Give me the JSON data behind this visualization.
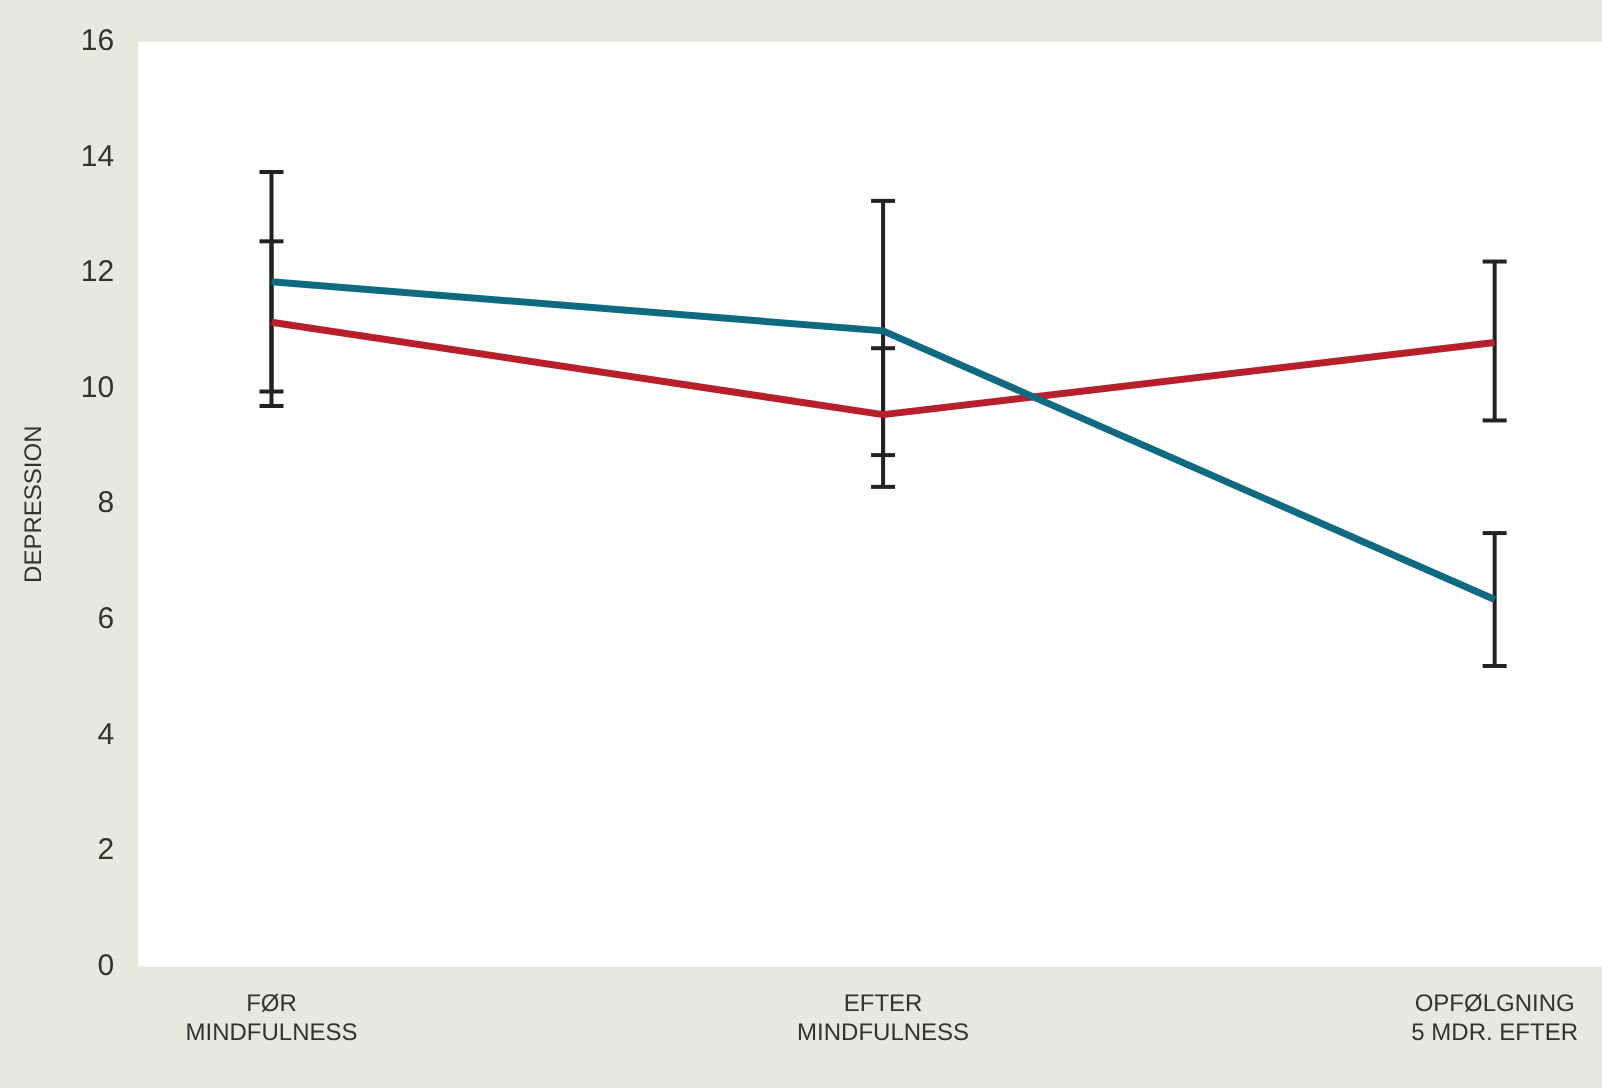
{
  "chart_data": {
    "type": "line",
    "ylabel": "DEPRESSION",
    "categories": [
      "FØR\nMINDFULNESS",
      "EFTER\nMINDFULNESS",
      "OPFØLGNING\n5 MDR. EFTER"
    ],
    "series": [
      {
        "color": "#0e6a80",
        "values": [
          11.85,
          11.0,
          6.35
        ],
        "errors": [
          [
            9.95,
            13.75
          ],
          [
            8.85,
            13.25
          ],
          [
            5.2,
            7.5
          ]
        ]
      },
      {
        "color": "#b71f2a",
        "values": [
          11.15,
          9.55,
          10.8
        ],
        "errors": [
          [
            9.7,
            12.55
          ],
          [
            8.3,
            10.7
          ],
          [
            9.45,
            12.2
          ]
        ]
      }
    ],
    "ylim": [
      0,
      16
    ],
    "yticks": [
      0,
      2,
      4,
      6,
      8,
      10,
      12,
      14,
      16
    ],
    "grid": false,
    "legend": false,
    "marker": "none",
    "line_style": "solid"
  }
}
